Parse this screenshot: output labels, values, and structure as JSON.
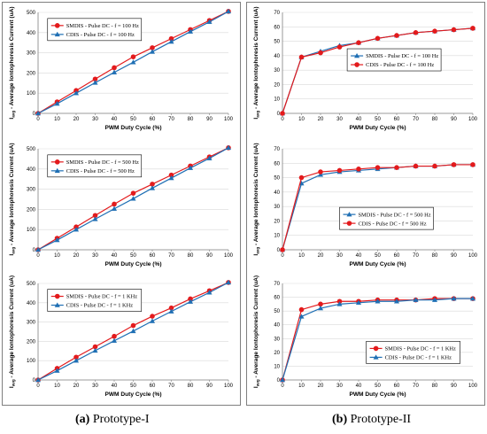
{
  "captions": {
    "a_letter": "(a)",
    "a_text": " Prototype-I",
    "b_letter": "(b)",
    "b_text": " Prototype-II"
  },
  "colors": {
    "series_1": "#e31a1c",
    "series_2": "#1f6fb4",
    "grid": "#d9d9d9",
    "axis": "#808080"
  },
  "chart_data": [
    {
      "id": "a1",
      "type": "line",
      "panel": "a",
      "xlabel": "PWM Duty Cycle (%)",
      "ylabel": "Iavg - Average Iontophoresis Current (uA)",
      "ylabel_main": "I",
      "ylabel_sub": "avg",
      "ylabel_rest": " - Average Iontophoresis Current (uA)",
      "xlim": [
        0,
        100
      ],
      "ylim": [
        0,
        500
      ],
      "x_ticks": [
        0,
        10,
        20,
        30,
        40,
        50,
        60,
        70,
        80,
        90,
        100
      ],
      "y_ticks": [
        0,
        100,
        200,
        300,
        400,
        500
      ],
      "grid": "horizontal",
      "legend_position": "top-left",
      "x": [
        0,
        10,
        20,
        30,
        40,
        50,
        60,
        70,
        80,
        90,
        100
      ],
      "series": [
        {
          "name": "SMDIS   - Pulse DC -  f = 100 Hz",
          "marker": "circle",
          "color": "#e31a1c",
          "values": [
            0,
            57,
            113,
            170,
            226,
            280,
            325,
            370,
            415,
            460,
            505
          ]
        },
        {
          "name": "CDIS     - Pulse DC -  f = 100 Hz",
          "marker": "triangle",
          "color": "#1f6fb4",
          "values": [
            0,
            48,
            100,
            152,
            203,
            253,
            305,
            355,
            405,
            453,
            505
          ]
        }
      ]
    },
    {
      "id": "a2",
      "type": "line",
      "panel": "a",
      "xlabel": "PWM Duty Cycle (%)",
      "ylabel": "Iavg - Average Iontophoresis Current (uA)",
      "ylabel_main": "I",
      "ylabel_sub": "avg",
      "ylabel_rest": " - Average Iontophoresis Current (uA)",
      "xlim": [
        0,
        100
      ],
      "ylim": [
        0,
        500
      ],
      "x_ticks": [
        0,
        10,
        20,
        30,
        40,
        50,
        60,
        70,
        80,
        90,
        100
      ],
      "y_ticks": [
        0,
        100,
        200,
        300,
        400,
        500
      ],
      "grid": "horizontal",
      "legend_position": "top-left",
      "x": [
        0,
        10,
        20,
        30,
        40,
        50,
        60,
        70,
        80,
        90,
        100
      ],
      "series": [
        {
          "name": "SMDIS   - Pulse DC -  f = 500 Hz",
          "marker": "circle",
          "color": "#e31a1c",
          "values": [
            0,
            57,
            113,
            170,
            226,
            280,
            325,
            370,
            415,
            460,
            505
          ]
        },
        {
          "name": "CDIS     - Pulse DC -  f = 500 Hz",
          "marker": "triangle",
          "color": "#1f6fb4",
          "values": [
            0,
            48,
            100,
            152,
            203,
            253,
            305,
            355,
            405,
            453,
            505
          ]
        }
      ]
    },
    {
      "id": "a3",
      "type": "line",
      "panel": "a",
      "xlabel": "PWM Duty Cycle (%)",
      "ylabel": "Iavg - Average Iontophoresis Current (uA)",
      "ylabel_main": "I",
      "ylabel_sub": "avg",
      "ylabel_rest": " - Average Iontophoresis Current (uA)",
      "xlim": [
        0,
        100
      ],
      "ylim": [
        0,
        500
      ],
      "x_ticks": [
        0,
        10,
        20,
        30,
        40,
        50,
        60,
        70,
        80,
        90,
        100
      ],
      "y_ticks": [
        0,
        100,
        200,
        300,
        400,
        500
      ],
      "grid": "horizontal",
      "legend_position": "top-left",
      "x": [
        0,
        10,
        20,
        30,
        40,
        50,
        60,
        70,
        80,
        90,
        100
      ],
      "series": [
        {
          "name": "SMDIS   - Pulse DC -  f = 1 KHz",
          "marker": "circle",
          "color": "#e31a1c",
          "values": [
            0,
            60,
            118,
            172,
            226,
            282,
            330,
            373,
            420,
            462,
            505
          ]
        },
        {
          "name": "CDIS     - Pulse DC -  f = 1 KHz",
          "marker": "triangle",
          "color": "#1f6fb4",
          "values": [
            0,
            48,
            100,
            152,
            203,
            253,
            305,
            355,
            405,
            453,
            505
          ]
        }
      ]
    },
    {
      "id": "b1",
      "type": "line",
      "panel": "b",
      "xlabel": "PWM Duty Cycle (%)",
      "ylabel": "Iavg - Average Iontophoresis Current (uA)",
      "ylabel_main": "I",
      "ylabel_sub": "avg",
      "ylabel_rest": " - Average Iontophoresis Current (uA)",
      "xlim": [
        0,
        100
      ],
      "ylim": [
        0,
        70
      ],
      "x_ticks": [
        0,
        10,
        20,
        30,
        40,
        50,
        60,
        70,
        80,
        90,
        100
      ],
      "y_ticks": [
        0,
        10,
        20,
        30,
        40,
        50,
        60,
        70
      ],
      "grid": "horizontal",
      "legend_position": "center-left",
      "x": [
        0,
        10,
        20,
        30,
        40,
        50,
        60,
        70,
        80,
        90,
        100
      ],
      "series": [
        {
          "name": "SMDIS  - Pulse DC -  f = 100 Hz",
          "marker": "triangle",
          "color": "#1f6fb4",
          "values": [
            0,
            39,
            43,
            47,
            49,
            52,
            54,
            56,
            57,
            58,
            59
          ]
        },
        {
          "name": "CDIS    - Pulse DC -  f = 100 Hz",
          "marker": "circle",
          "color": "#e31a1c",
          "values": [
            0,
            39,
            42,
            46,
            49,
            52,
            54,
            56,
            57,
            58,
            59
          ]
        }
      ]
    },
    {
      "id": "b2",
      "type": "line",
      "panel": "b",
      "xlabel": "PWM Duty Cycle (%)",
      "ylabel": "Iavg - Average Iontophoresis Current (uA)",
      "ylabel_main": "I",
      "ylabel_sub": "avg",
      "ylabel_rest": " - Average Iontophoresis Current (uA)",
      "xlim": [
        0,
        100
      ],
      "ylim": [
        0,
        70
      ],
      "x_ticks": [
        0,
        10,
        20,
        30,
        40,
        50,
        60,
        70,
        80,
        90,
        100
      ],
      "y_ticks": [
        0,
        10,
        20,
        30,
        40,
        50,
        60,
        70
      ],
      "grid": "horizontal",
      "legend_position": "bottom-center",
      "x": [
        0,
        10,
        20,
        30,
        40,
        50,
        60,
        70,
        80,
        90,
        100
      ],
      "series": [
        {
          "name": "SMDIS  - Pulse DC -  f = 500 Hz",
          "marker": "triangle",
          "color": "#1f6fb4",
          "values": [
            0,
            46,
            52,
            54,
            55,
            56,
            57,
            58,
            58,
            59,
            59
          ]
        },
        {
          "name": "CDIS    - Pulse DC -  f = 500 Hz",
          "marker": "circle",
          "color": "#e31a1c",
          "values": [
            0,
            50,
            54,
            55,
            56,
            57,
            57,
            58,
            58,
            59,
            59
          ]
        }
      ]
    },
    {
      "id": "b3",
      "type": "line",
      "panel": "b",
      "xlabel": "PWM Duty Cycle (%)",
      "ylabel": "Iavg - Average Iontophoresis Current (uA)",
      "ylabel_main": "I",
      "ylabel_sub": "avg",
      "ylabel_rest": " - Average Iontophoresis Current (uA)",
      "xlim": [
        0,
        100
      ],
      "ylim": [
        0,
        70
      ],
      "x_ticks": [
        0,
        10,
        20,
        30,
        40,
        50,
        60,
        70,
        80,
        90,
        100
      ],
      "y_ticks": [
        0,
        10,
        20,
        30,
        40,
        50,
        60,
        70
      ],
      "grid": "horizontal",
      "legend_position": "bottom-right",
      "x": [
        0,
        10,
        20,
        30,
        40,
        50,
        60,
        70,
        80,
        90,
        100
      ],
      "series": [
        {
          "name": "SMDIS  - Pulse DC -  f = 1 KHz",
          "marker": "circle",
          "color": "#e31a1c",
          "values": [
            0,
            51,
            55,
            57,
            57,
            58,
            58,
            58,
            59,
            59,
            59
          ]
        },
        {
          "name": "CDIS    - Pulse DC -  f = 1 KHz",
          "marker": "triangle",
          "color": "#1f6fb4",
          "values": [
            0,
            46,
            52,
            55,
            56,
            57,
            57,
            58,
            58,
            59,
            59
          ]
        }
      ]
    }
  ]
}
